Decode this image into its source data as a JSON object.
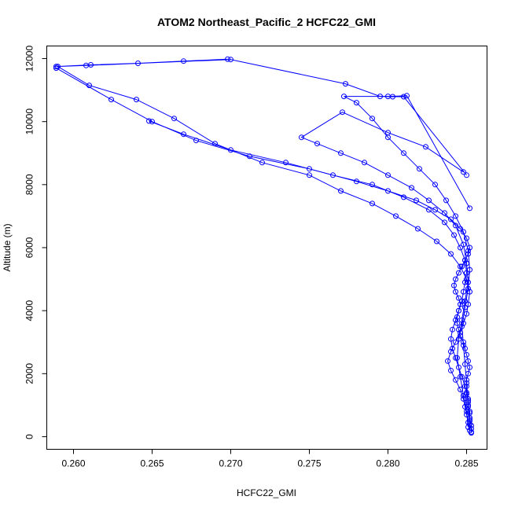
{
  "chart_data": {
    "type": "line",
    "title": "ATOM2 Northeast_Pacific_2 HCFC22_GMI",
    "xlabel": "HCFC22_GMI",
    "ylabel": "Altitude (m)",
    "xlim": [
      0.2583,
      0.2863
    ],
    "ylim": [
      -400,
      12400
    ],
    "xticks": [
      0.26,
      0.265,
      0.27,
      0.275,
      0.28,
      0.285
    ],
    "xtick_labels": [
      "0.260",
      "0.265",
      "0.270",
      "0.275",
      "0.280",
      "0.285"
    ],
    "yticks": [
      0,
      2000,
      4000,
      6000,
      8000,
      10000,
      12000
    ],
    "ytick_labels": [
      "0",
      "2000",
      "4000",
      "6000",
      "8000",
      "10000",
      "12000"
    ],
    "series_color": "#0000ff",
    "marker": "open-circle",
    "grid": false,
    "series": [
      {
        "x": [
          0.2853,
          0.2853,
          0.2852,
          0.2852,
          0.2852,
          0.2851,
          0.2851,
          0.285,
          0.285,
          0.285,
          0.2851,
          0.2852,
          0.2851,
          0.285,
          0.2849,
          0.2848,
          0.2846,
          0.2845,
          0.2844,
          0.2844,
          0.2845,
          0.2846,
          0.2845,
          0.2843,
          0.2842,
          0.2843,
          0.2845,
          0.2847,
          0.2849,
          0.2851,
          0.2852,
          0.285,
          0.2846,
          0.284,
          0.283,
          0.2818,
          0.28,
          0.278,
          0.275,
          0.2712,
          0.2678,
          0.265,
          0.2624,
          0.2589
        ],
        "y": [
          120,
          250,
          400,
          600,
          800,
          1000,
          1200,
          1400,
          1600,
          1800,
          2000,
          2200,
          2400,
          2600,
          2800,
          3000,
          3200,
          3400,
          3600,
          3800,
          4000,
          4200,
          4400,
          4600,
          4800,
          5000,
          5200,
          5400,
          5600,
          5800,
          6000,
          6300,
          6600,
          6900,
          7200,
          7500,
          7800,
          8100,
          8500,
          8900,
          9400,
          10000,
          10700,
          11700
        ]
      },
      {
        "x": [
          0.2853,
          0.2853,
          0.2852,
          0.2852,
          0.2851,
          0.2851,
          0.285,
          0.2849,
          0.2847,
          0.2845,
          0.2843,
          0.2841,
          0.284,
          0.2841,
          0.2843,
          0.2845,
          0.2847,
          0.2848,
          0.2849,
          0.285,
          0.2849,
          0.2846,
          0.2842,
          0.2836,
          0.2826,
          0.281,
          0.279,
          0.2765,
          0.2735,
          0.27,
          0.267,
          0.2648
        ],
        "y": [
          150,
          350,
          550,
          750,
          950,
          1150,
          1350,
          1600,
          1900,
          2200,
          2500,
          2800,
          3100,
          3400,
          3700,
          4000,
          4300,
          4600,
          4900,
          5200,
          5600,
          6000,
          6400,
          6800,
          7200,
          7600,
          8000,
          8300,
          8700,
          9100,
          9600,
          10020
        ]
      },
      {
        "x": [
          0.2852,
          0.2851,
          0.285,
          0.2849,
          0.2848,
          0.2846,
          0.2843,
          0.284,
          0.2838,
          0.284,
          0.2843,
          0.2846,
          0.2848,
          0.285,
          0.2851,
          0.2852,
          0.285,
          0.2846,
          0.284,
          0.2831,
          0.2819,
          0.2805,
          0.279,
          0.277,
          0.275,
          0.272,
          0.269,
          0.2664,
          0.264,
          0.261,
          0.259
        ],
        "y": [
          200,
          450,
          700,
          950,
          1200,
          1500,
          1800,
          2100,
          2400,
          2700,
          3000,
          3300,
          3600,
          3900,
          4200,
          4600,
          5000,
          5400,
          5800,
          6200,
          6600,
          7000,
          7400,
          7800,
          8300,
          8700,
          9300,
          10100,
          10700,
          11150,
          11750
        ]
      },
      {
        "x": [
          0.2851,
          0.285,
          0.2848,
          0.2846,
          0.2844,
          0.2845,
          0.2847,
          0.2849,
          0.2851,
          0.285,
          0.2848,
          0.2843,
          0.2836,
          0.2826,
          0.2815,
          0.28,
          0.2785,
          0.277,
          0.2755,
          0.2745,
          0.2771,
          0.28,
          0.2824,
          0.2848
        ],
        "y": [
          300,
          800,
          1300,
          1900,
          2500,
          3100,
          3700,
          4300,
          4900,
          5500,
          6100,
          6700,
          7100,
          7500,
          7900,
          8300,
          8700,
          9000,
          9300,
          9500,
          10300,
          9650,
          9200,
          8400
        ]
      },
      {
        "x": [
          0.2852,
          0.2851,
          0.285,
          0.2849,
          0.2848,
          0.2847,
          0.2849,
          0.2851,
          0.2852,
          0.2851,
          0.2848,
          0.2843,
          0.2837,
          0.283,
          0.282,
          0.281,
          0.28,
          0.279,
          0.278,
          0.2772,
          0.28,
          0.2812,
          0.2852
        ],
        "y": [
          500,
          1100,
          1700,
          2300,
          2900,
          3500,
          4100,
          4700,
          5300,
          5900,
          6500,
          7000,
          7500,
          8000,
          8500,
          9000,
          9500,
          10100,
          10600,
          10800,
          10800,
          10820,
          7250
        ]
      },
      {
        "x": [
          0.2698,
          0.267,
          0.2641,
          0.2611,
          0.2589,
          0.2608,
          0.27,
          0.2773,
          0.2795,
          0.2803,
          0.281,
          0.285
        ],
        "y": [
          11980,
          11920,
          11850,
          11800,
          11750,
          11780,
          11970,
          11200,
          10800,
          10790,
          10790,
          8300
        ]
      }
    ]
  }
}
